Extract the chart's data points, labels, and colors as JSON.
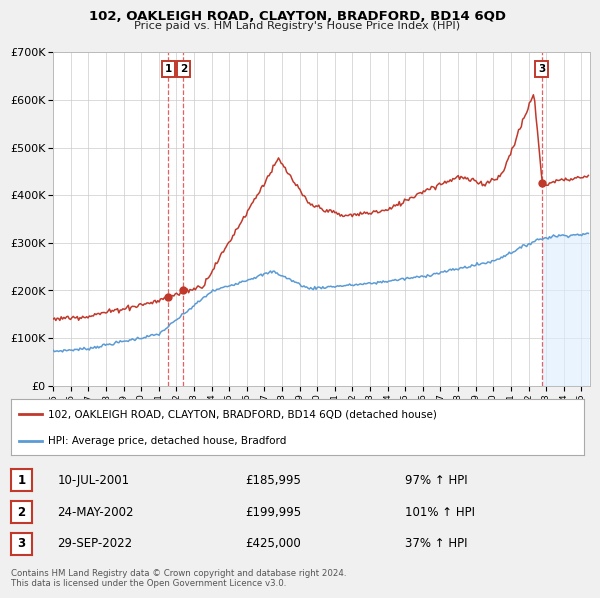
{
  "title": "102, OAKLEIGH ROAD, CLAYTON, BRADFORD, BD14 6QD",
  "subtitle": "Price paid vs. HM Land Registry's House Price Index (HPI)",
  "legend_label_red": "102, OAKLEIGH ROAD, CLAYTON, BRADFORD, BD14 6QD (detached house)",
  "legend_label_blue": "HPI: Average price, detached house, Bradford",
  "sale_points": [
    {
      "label": "1",
      "date_num": 2001.53,
      "price": 185995,
      "date_str": "10-JUL-2001",
      "pct": "97%",
      "arrow": "↑"
    },
    {
      "label": "2",
      "date_num": 2002.39,
      "price": 199995,
      "date_str": "24-MAY-2002",
      "pct": "101%",
      "arrow": "↑"
    },
    {
      "label": "3",
      "date_num": 2022.75,
      "price": 425000,
      "date_str": "29-SEP-2022",
      "pct": "37%",
      "arrow": "↑"
    }
  ],
  "ylim": [
    0,
    700000
  ],
  "yticks": [
    0,
    100000,
    200000,
    300000,
    400000,
    500000,
    600000,
    700000
  ],
  "ytick_labels": [
    "£0",
    "£100K",
    "£200K",
    "£300K",
    "£400K",
    "£500K",
    "£600K",
    "£700K"
  ],
  "xlim_start": 1995.0,
  "xlim_end": 2025.5,
  "red_color": "#c0392b",
  "blue_color": "#5b9bd5",
  "dashed_color": "#e05050",
  "shade_color": "#ddeeff",
  "background_color": "#f0f0f0",
  "plot_bg_color": "#ffffff",
  "grid_color": "#cccccc",
  "footer": "Contains HM Land Registry data © Crown copyright and database right 2024.\nThis data is licensed under the Open Government Licence v3.0.",
  "vline1_x": 2001.53,
  "vline2_x": 2002.39,
  "vline3_x": 2022.75,
  "hpi_noise_seed": 12,
  "red_noise_seed": 7
}
